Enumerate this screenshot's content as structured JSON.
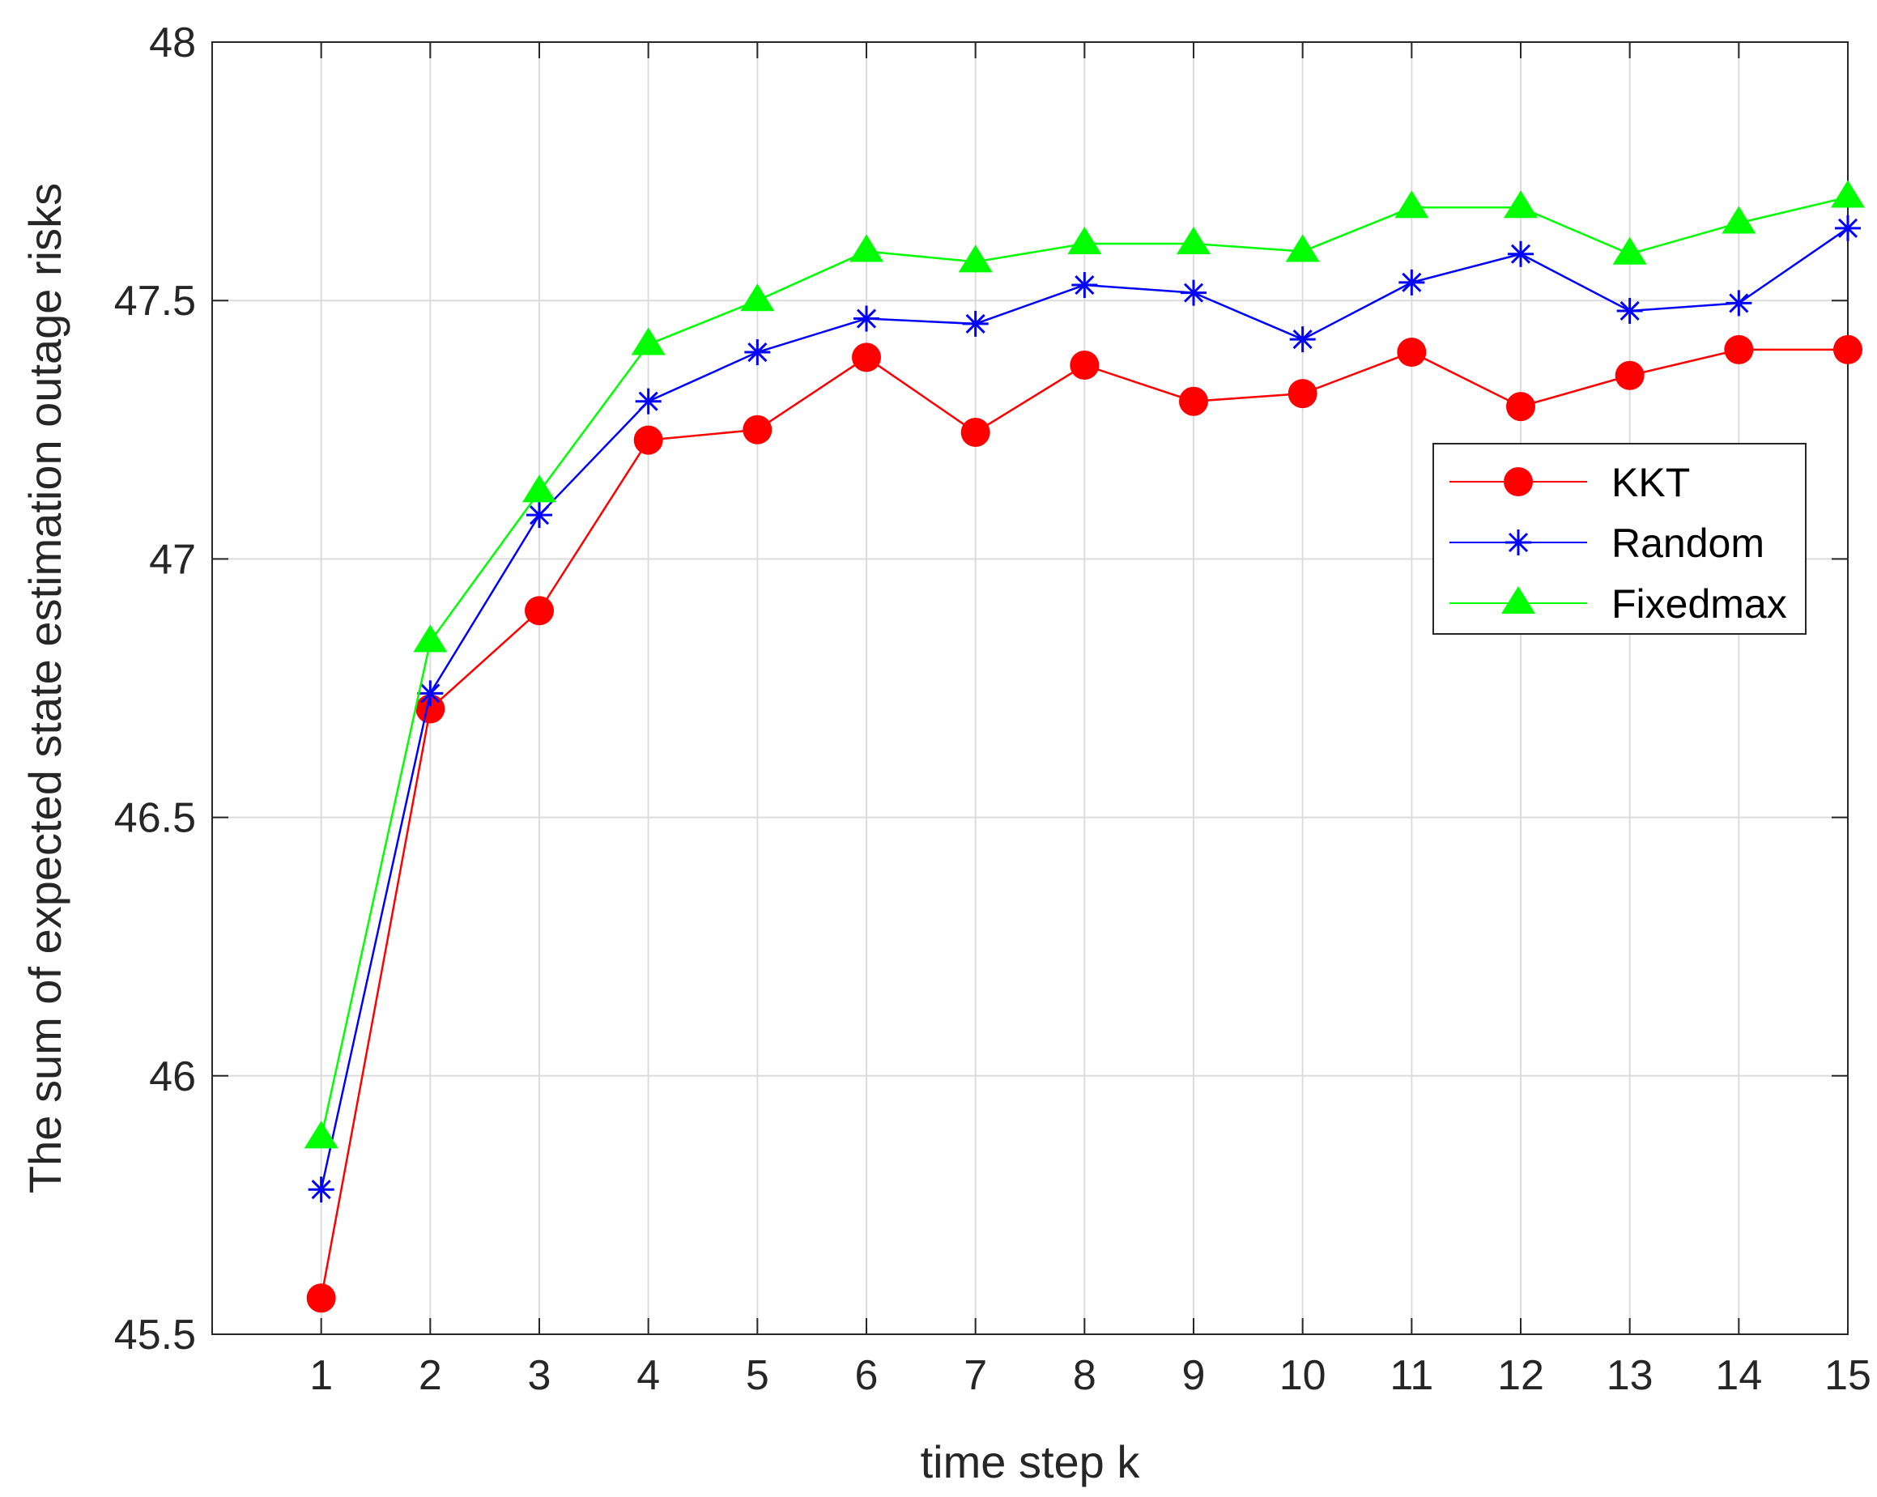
{
  "chart_data": {
    "type": "line",
    "title": "",
    "xlabel": "time step k",
    "ylabel": "The sum of expected state estimation outage risks",
    "x": [
      1,
      2,
      3,
      4,
      5,
      6,
      7,
      8,
      9,
      10,
      11,
      12,
      13,
      14,
      15
    ],
    "xlim": [
      0,
      15
    ],
    "ylim": [
      45.5,
      48
    ],
    "xticks": [
      "1",
      "2",
      "3",
      "4",
      "5",
      "6",
      "7",
      "8",
      "9",
      "10",
      "11",
      "12",
      "13",
      "14",
      "15"
    ],
    "yticks": [
      "45.5",
      "46",
      "46.5",
      "47",
      "47.5",
      "48"
    ],
    "grid": true,
    "legend_position": "right",
    "series": [
      {
        "name": "KKT",
        "color": "#ff0000",
        "marker": "circle",
        "values": [
          45.57,
          46.71,
          46.9,
          47.23,
          47.25,
          47.39,
          47.245,
          47.375,
          47.305,
          47.32,
          47.4,
          47.295,
          47.355,
          47.405,
          47.405
        ]
      },
      {
        "name": "Random",
        "color": "#0000ff",
        "marker": "asterisk",
        "values": [
          45.78,
          46.74,
          47.085,
          47.305,
          47.4,
          47.465,
          47.455,
          47.53,
          47.515,
          47.425,
          47.535,
          47.59,
          47.48,
          47.495,
          47.64
        ]
      },
      {
        "name": "Fixedmax",
        "color": "#00ff00",
        "marker": "triangle",
        "values": [
          45.88,
          46.84,
          47.13,
          47.415,
          47.5,
          47.595,
          47.575,
          47.61,
          47.61,
          47.595,
          47.68,
          47.68,
          47.59,
          47.65,
          47.7
        ]
      }
    ]
  }
}
